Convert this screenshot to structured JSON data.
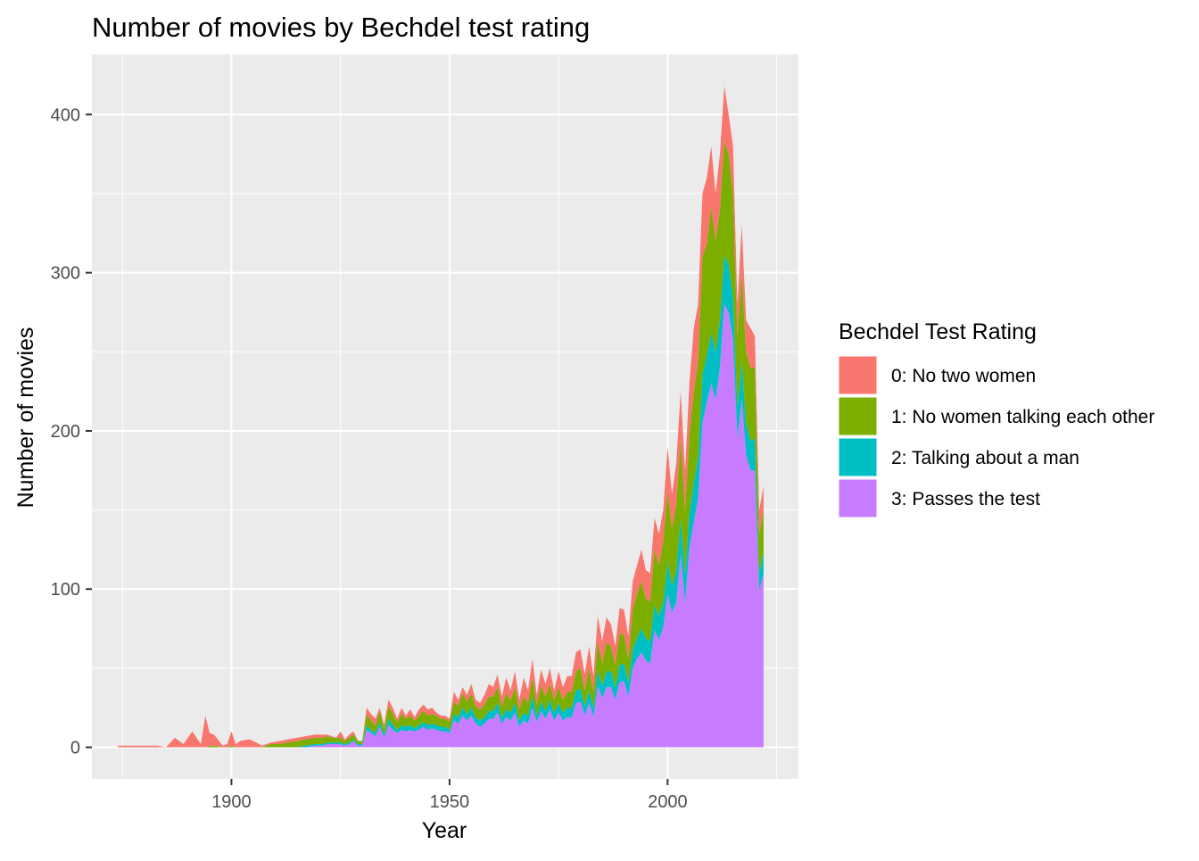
{
  "chart_data": {
    "type": "area",
    "stacked": true,
    "title": "Number of movies by Bechdel test rating",
    "xlabel": "Year",
    "ylabel": "Number of movies",
    "xlim": [
      1868,
      2030
    ],
    "ylim": [
      -20,
      438
    ],
    "x_ticks": [
      1900,
      1950,
      2000
    ],
    "y_ticks": [
      0,
      100,
      200,
      300,
      400
    ],
    "x_minor": [
      1875,
      1925,
      1975,
      2025
    ],
    "y_minor": [
      50,
      150,
      250,
      350
    ],
    "legend": {
      "title": "Bechdel Test Rating",
      "position": "right",
      "entries": [
        "0: No two women",
        "1: No women talking each other",
        "2: Talking about a man",
        "3: Passes the test"
      ]
    },
    "colors": {
      "s0": "#F8766D",
      "s1": "#7CAE00",
      "s2": "#00BFC4",
      "s3": "#C77CFF"
    },
    "years": [
      1874,
      1877,
      1878,
      1881,
      1883,
      1885,
      1887,
      1889,
      1891,
      1893,
      1894,
      1895,
      1896,
      1898,
      1899,
      1900,
      1901,
      1902,
      1904,
      1905,
      1907,
      1909,
      1911,
      1913,
      1915,
      1917,
      1919,
      1921,
      1922,
      1923,
      1924,
      1925,
      1926,
      1927,
      1928,
      1929,
      1930,
      1931,
      1932,
      1933,
      1934,
      1935,
      1936,
      1937,
      1938,
      1939,
      1940,
      1941,
      1942,
      1943,
      1944,
      1945,
      1946,
      1947,
      1948,
      1949,
      1950,
      1951,
      1952,
      1953,
      1954,
      1955,
      1956,
      1957,
      1958,
      1959,
      1960,
      1961,
      1962,
      1963,
      1964,
      1965,
      1966,
      1967,
      1968,
      1969,
      1970,
      1971,
      1972,
      1973,
      1974,
      1975,
      1976,
      1977,
      1978,
      1979,
      1980,
      1981,
      1982,
      1983,
      1984,
      1985,
      1986,
      1987,
      1988,
      1989,
      1990,
      1991,
      1992,
      1993,
      1994,
      1995,
      1996,
      1997,
      1998,
      1999,
      2000,
      2001,
      2002,
      2003,
      2004,
      2005,
      2006,
      2007,
      2008,
      2009,
      2010,
      2011,
      2012,
      2013,
      2014,
      2015,
      2016,
      2017,
      2018,
      2019,
      2020,
      2021,
      2022
    ],
    "total": [
      1,
      1,
      1,
      1,
      1,
      0,
      6,
      2,
      10,
      2,
      20,
      9,
      8,
      1,
      2,
      10,
      2,
      4,
      5,
      4,
      1,
      3,
      4,
      5,
      6,
      7,
      8,
      8,
      8,
      7,
      6,
      10,
      5,
      8,
      10,
      4,
      4,
      25,
      21,
      18,
      25,
      14,
      30,
      25,
      18,
      25,
      20,
      24,
      19,
      24,
      27,
      24,
      25,
      22,
      20,
      20,
      18,
      35,
      30,
      38,
      33,
      40,
      30,
      28,
      33,
      40,
      38,
      46,
      32,
      44,
      36,
      48,
      30,
      44,
      36,
      56,
      33,
      49,
      40,
      50,
      36,
      48,
      38,
      45,
      45,
      60,
      62,
      46,
      64,
      45,
      83,
      67,
      82,
      78,
      64,
      88,
      87,
      70,
      105,
      115,
      125,
      112,
      110,
      145,
      135,
      150,
      190,
      160,
      180,
      225,
      175,
      230,
      265,
      280,
      350,
      360,
      380,
      350,
      375,
      418,
      400,
      380,
      280,
      330,
      270,
      265,
      260,
      150,
      165
    ],
    "series": [
      {
        "name": "0: No two women",
        "values": [
          1,
          1,
          1,
          1,
          1,
          0,
          6,
          2,
          10,
          2,
          20,
          8,
          7,
          1,
          2,
          9,
          2,
          4,
          5,
          4,
          1,
          1,
          2,
          2,
          2,
          2,
          2,
          2,
          1,
          1,
          0,
          4,
          1,
          2,
          2,
          0,
          0,
          4,
          4,
          4,
          2,
          2,
          4,
          4,
          2,
          4,
          2,
          4,
          2,
          4,
          4,
          4,
          4,
          2,
          2,
          2,
          2,
          6,
          4,
          4,
          4,
          6,
          4,
          4,
          6,
          8,
          6,
          8,
          6,
          10,
          6,
          10,
          6,
          12,
          8,
          12,
          6,
          10,
          8,
          10,
          6,
          10,
          8,
          10,
          10,
          12,
          12,
          10,
          14,
          10,
          16,
          14,
          16,
          14,
          12,
          16,
          16,
          14,
          18,
          18,
          20,
          18,
          18,
          20,
          20,
          20,
          28,
          22,
          26,
          30,
          26,
          32,
          40,
          36,
          40,
          42,
          38,
          30,
          35,
          35,
          25,
          30,
          20,
          30,
          20,
          25,
          20,
          15,
          15
        ]
      },
      {
        "name": "1: No women talking each other",
        "values": [
          0,
          0,
          0,
          0,
          0,
          0,
          0,
          0,
          0,
          0,
          0,
          1,
          1,
          0,
          0,
          1,
          0,
          0,
          0,
          0,
          0,
          2,
          2,
          3,
          4,
          4,
          4,
          4,
          4,
          3,
          3,
          3,
          2,
          3,
          3,
          2,
          2,
          7,
          6,
          5,
          7,
          4,
          8,
          7,
          5,
          7,
          5,
          6,
          5,
          6,
          7,
          6,
          6,
          6,
          5,
          5,
          5,
          8,
          7,
          9,
          8,
          9,
          7,
          7,
          8,
          9,
          9,
          10,
          7,
          10,
          8,
          10,
          7,
          10,
          8,
          12,
          7,
          10,
          9,
          10,
          8,
          10,
          8,
          10,
          10,
          12,
          13,
          10,
          14,
          10,
          18,
          14,
          18,
          16,
          14,
          20,
          18,
          15,
          25,
          28,
          30,
          25,
          25,
          35,
          32,
          38,
          45,
          36,
          42,
          50,
          40,
          50,
          58,
          60,
          75,
          70,
          80,
          70,
          70,
          72,
          70,
          64,
          45,
          56,
          45,
          46,
          45,
          25,
          27
        ]
      },
      {
        "name": "2: Talking about a man",
        "values": [
          0,
          0,
          0,
          0,
          0,
          0,
          0,
          0,
          0,
          0,
          0,
          0,
          0,
          0,
          0,
          0,
          0,
          0,
          0,
          0,
          0,
          0,
          0,
          0,
          0,
          1,
          1,
          1,
          1,
          1,
          1,
          1,
          1,
          1,
          1,
          1,
          1,
          3,
          2,
          2,
          3,
          2,
          4,
          3,
          2,
          3,
          3,
          3,
          2,
          3,
          3,
          3,
          3,
          3,
          3,
          3,
          2,
          4,
          4,
          5,
          4,
          5,
          4,
          4,
          4,
          5,
          5,
          6,
          4,
          5,
          5,
          6,
          4,
          5,
          5,
          7,
          4,
          6,
          5,
          6,
          5,
          6,
          5,
          6,
          6,
          8,
          8,
          6,
          8,
          6,
          10,
          8,
          10,
          10,
          8,
          11,
          11,
          9,
          12,
          13,
          15,
          14,
          14,
          16,
          15,
          16,
          20,
          17,
          20,
          23,
          18,
          22,
          25,
          26,
          30,
          30,
          32,
          30,
          30,
          31,
          30,
          28,
          20,
          24,
          20,
          19,
          20,
          11,
          13
        ]
      },
      {
        "name": "3: Passes the test",
        "values": [
          0,
          0,
          0,
          0,
          0,
          0,
          0,
          0,
          0,
          0,
          0,
          0,
          0,
          0,
          0,
          0,
          0,
          0,
          0,
          0,
          0,
          0,
          0,
          0,
          0,
          0,
          1,
          1,
          2,
          2,
          2,
          2,
          1,
          2,
          4,
          1,
          1,
          11,
          9,
          7,
          13,
          6,
          14,
          11,
          9,
          11,
          10,
          11,
          10,
          11,
          13,
          11,
          12,
          11,
          10,
          10,
          9,
          17,
          15,
          20,
          17,
          20,
          15,
          13,
          15,
          18,
          18,
          22,
          15,
          19,
          17,
          22,
          13,
          17,
          15,
          25,
          16,
          23,
          18,
          24,
          17,
          22,
          17,
          19,
          19,
          28,
          29,
          20,
          28,
          19,
          39,
          31,
          38,
          38,
          30,
          41,
          42,
          32,
          50,
          56,
          60,
          55,
          53,
          74,
          68,
          76,
          97,
          85,
          92,
          122,
          91,
          126,
          142,
          158,
          205,
          218,
          230,
          220,
          240,
          280,
          275,
          258,
          195,
          220,
          185,
          175,
          175,
          99,
          110
        ]
      }
    ]
  }
}
